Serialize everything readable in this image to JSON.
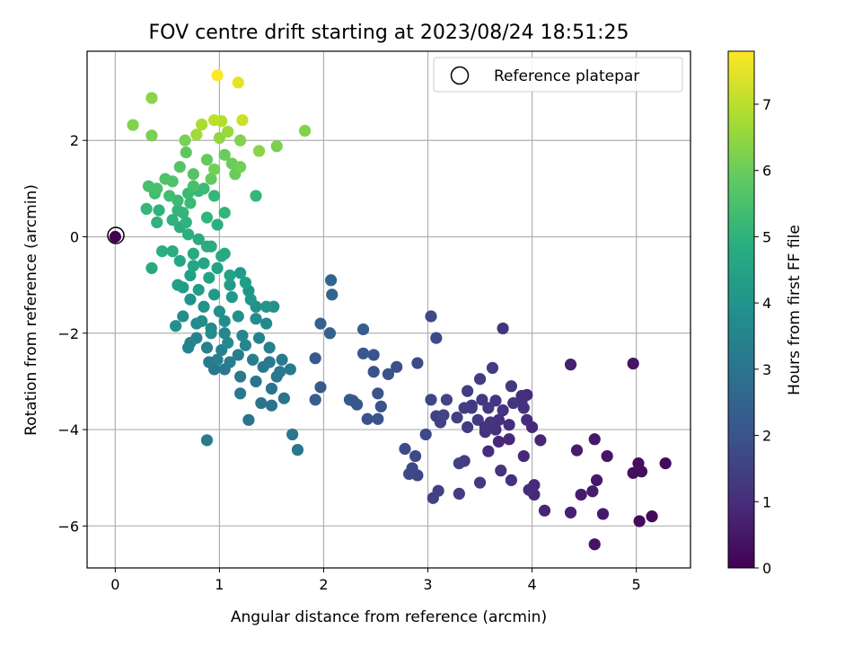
{
  "chart_data": {
    "type": "scatter",
    "title": "FOV centre drift starting at 2023/08/24 18:51:25",
    "xlabel": "Angular distance from reference (arcmin)",
    "ylabel": "Rotation from reference (arcmin)",
    "colorbar_label": "Hours from first FF file",
    "colormap": "viridis",
    "xlim": [
      -0.27,
      5.52
    ],
    "ylim": [
      -6.87,
      3.85
    ],
    "clim": [
      0,
      7.8
    ],
    "x_ticks": [
      "0",
      "1",
      "2",
      "3",
      "4",
      "5"
    ],
    "y_ticks": [
      "2",
      "0",
      "−2",
      "−4",
      "−6"
    ],
    "colorbar_ticks": [
      "0",
      "1",
      "2",
      "3",
      "4",
      "5",
      "6",
      "7"
    ],
    "grid": true,
    "legend": {
      "position": "top-right",
      "label": "Reference platepar"
    },
    "reference_point": {
      "x": 0,
      "y": 0
    },
    "points": [
      [
        0.98,
        3.35,
        7.8
      ],
      [
        1.18,
        3.2,
        7.5
      ],
      [
        1.22,
        2.42,
        7.2
      ],
      [
        0.95,
        2.42,
        7.0
      ],
      [
        1.02,
        2.4,
        6.9
      ],
      [
        0.83,
        2.33,
        6.8
      ],
      [
        0.78,
        2.12,
        6.7
      ],
      [
        1.08,
        2.18,
        6.6
      ],
      [
        1.0,
        2.05,
        6.5
      ],
      [
        1.38,
        1.78,
        6.4
      ],
      [
        1.82,
        2.2,
        6.3
      ],
      [
        1.55,
        1.88,
        6.2
      ],
      [
        1.2,
        1.45,
        6.1
      ],
      [
        1.15,
        1.3,
        6.0
      ],
      [
        0.95,
        1.4,
        6.1
      ],
      [
        0.92,
        1.2,
        5.9
      ],
      [
        0.88,
        1.6,
        5.9
      ],
      [
        1.05,
        1.7,
        6.0
      ],
      [
        0.68,
        1.75,
        5.8
      ],
      [
        0.62,
        1.45,
        5.7
      ],
      [
        0.75,
        1.3,
        5.7
      ],
      [
        0.55,
        1.15,
        5.6
      ],
      [
        0.48,
        1.2,
        5.6
      ],
      [
        0.4,
        1.0,
        5.5
      ],
      [
        0.32,
        1.05,
        5.5
      ],
      [
        0.38,
        0.9,
        5.4
      ],
      [
        0.52,
        0.85,
        5.4
      ],
      [
        0.6,
        0.75,
        5.3
      ],
      [
        0.72,
        0.7,
        5.3
      ],
      [
        0.85,
        1.0,
        5.3
      ],
      [
        0.95,
        0.85,
        5.2
      ],
      [
        1.05,
        0.5,
        5.1
      ],
      [
        0.88,
        0.4,
        5.1
      ],
      [
        0.65,
        0.5,
        5.1
      ],
      [
        0.55,
        0.35,
        5.0
      ],
      [
        0.42,
        0.55,
        5.0
      ],
      [
        0.4,
        0.3,
        5.0
      ],
      [
        0.62,
        0.2,
        4.9
      ],
      [
        0.7,
        0.05,
        4.9
      ],
      [
        0.8,
        -0.05,
        4.8
      ],
      [
        0.92,
        -0.2,
        4.8
      ],
      [
        1.05,
        -0.35,
        4.7
      ],
      [
        0.75,
        -0.35,
        4.7
      ],
      [
        0.62,
        -0.5,
        4.6
      ],
      [
        0.85,
        -0.55,
        4.6
      ],
      [
        0.98,
        -0.65,
        4.5
      ],
      [
        1.1,
        -0.8,
        4.5
      ],
      [
        1.25,
        -0.95,
        4.4
      ],
      [
        0.72,
        -0.8,
        4.4
      ],
      [
        0.65,
        -1.05,
        4.3
      ],
      [
        0.8,
        -1.1,
        4.3
      ],
      [
        0.95,
        -1.2,
        4.2
      ],
      [
        1.12,
        -1.25,
        4.2
      ],
      [
        1.3,
        -1.3,
        4.1
      ],
      [
        1.45,
        -1.45,
        4.1
      ],
      [
        0.72,
        -1.3,
        4.0
      ],
      [
        0.85,
        -1.45,
        4.0
      ],
      [
        1.0,
        -1.55,
        3.9
      ],
      [
        1.18,
        -1.65,
        3.9
      ],
      [
        1.35,
        -1.7,
        3.8
      ],
      [
        0.65,
        -1.65,
        3.8
      ],
      [
        0.78,
        -1.8,
        3.7
      ],
      [
        0.92,
        -1.9,
        3.7
      ],
      [
        1.05,
        -2.0,
        3.6
      ],
      [
        1.22,
        -2.05,
        3.6
      ],
      [
        1.38,
        -2.1,
        3.5
      ],
      [
        0.72,
        -2.2,
        3.5
      ],
      [
        0.88,
        -2.3,
        3.4
      ],
      [
        1.02,
        -2.35,
        3.4
      ],
      [
        1.18,
        -2.45,
        3.3
      ],
      [
        1.32,
        -2.55,
        3.3
      ],
      [
        1.48,
        -2.6,
        3.2
      ],
      [
        0.9,
        -2.6,
        3.2
      ],
      [
        1.05,
        -2.75,
        3.1
      ],
      [
        1.2,
        -2.9,
        3.1
      ],
      [
        1.35,
        -3.0,
        3.0
      ],
      [
        1.5,
        -3.15,
        3.0
      ],
      [
        0.95,
        -2.75,
        3.1
      ],
      [
        1.6,
        -2.55,
        3.2
      ],
      [
        1.62,
        -3.35,
        3.0
      ],
      [
        1.35,
        -1.45,
        3.9
      ],
      [
        1.52,
        -1.45,
        3.9
      ],
      [
        0.55,
        -0.3,
        4.8
      ],
      [
        0.35,
        -0.65,
        4.7
      ],
      [
        1.28,
        -3.8,
        3.0
      ],
      [
        1.2,
        -3.25,
        3.1
      ],
      [
        0.88,
        -4.22,
        3.2
      ],
      [
        1.7,
        -4.1,
        3.1
      ],
      [
        1.75,
        -4.42,
        3.1
      ],
      [
        1.68,
        -2.75,
        3.2
      ],
      [
        1.28,
        -1.12,
        4.0
      ],
      [
        1.2,
        -0.75,
        4.3
      ],
      [
        0.58,
        -1.85,
        3.9
      ],
      [
        0.92,
        -2.0,
        3.8
      ],
      [
        1.08,
        -2.2,
        3.7
      ],
      [
        1.25,
        -2.25,
        3.6
      ],
      [
        0.98,
        -2.55,
        3.4
      ],
      [
        1.1,
        -2.6,
        3.3
      ],
      [
        1.42,
        -2.7,
        3.2
      ],
      [
        1.5,
        -3.5,
        2.9
      ],
      [
        1.4,
        -3.45,
        3.0
      ],
      [
        1.55,
        -2.9,
        3.1
      ],
      [
        0.7,
        0.9,
        5.3
      ],
      [
        0.8,
        0.95,
        5.2
      ],
      [
        1.35,
        0.85,
        5.2
      ],
      [
        0.3,
        0.58,
        5.2
      ],
      [
        0.35,
        2.1,
        6.2
      ],
      [
        0.17,
        2.32,
        6.3
      ],
      [
        0.35,
        2.88,
        6.4
      ],
      [
        0.67,
        2.0,
        6.2
      ],
      [
        0.88,
        -0.2,
        4.8
      ],
      [
        0.98,
        0.25,
        4.9
      ],
      [
        0.6,
        0.55,
        5.1
      ],
      [
        0.45,
        -0.3,
        4.9
      ],
      [
        0.75,
        -0.6,
        4.6
      ],
      [
        0.9,
        -0.85,
        4.5
      ],
      [
        0.6,
        -1.0,
        4.4
      ],
      [
        1.02,
        -0.4,
        4.7
      ],
      [
        1.1,
        -1.0,
        4.3
      ],
      [
        1.45,
        -1.8,
        3.7
      ],
      [
        0.83,
        -1.75,
        3.8
      ],
      [
        1.48,
        -2.3,
        3.4
      ],
      [
        1.58,
        -2.8,
        3.2
      ],
      [
        0.78,
        -2.1,
        3.5
      ],
      [
        0.7,
        -2.3,
        3.5
      ],
      [
        1.05,
        -1.75,
        3.8
      ],
      [
        0.68,
        0.3,
        5.0
      ],
      [
        0.75,
        1.05,
        5.5
      ],
      [
        1.12,
        1.52,
        6.0
      ],
      [
        1.2,
        2.0,
        6.3
      ],
      [
        2.07,
        -0.9,
        2.5
      ],
      [
        2.08,
        -1.2,
        2.5
      ],
      [
        1.97,
        -1.8,
        2.4
      ],
      [
        2.06,
        -2.0,
        2.4
      ],
      [
        2.38,
        -1.92,
        2.3
      ],
      [
        1.92,
        -2.52,
        2.2
      ],
      [
        1.97,
        -3.12,
        2.2
      ],
      [
        1.92,
        -3.38,
        2.3
      ],
      [
        2.25,
        -3.38,
        2.2
      ],
      [
        2.32,
        -3.48,
        2.1
      ],
      [
        2.42,
        -3.78,
        2.0
      ],
      [
        2.52,
        -3.78,
        2.0
      ],
      [
        2.55,
        -3.52,
        2.0
      ],
      [
        2.52,
        -3.25,
        2.0
      ],
      [
        2.48,
        -2.8,
        2.0
      ],
      [
        2.48,
        -2.45,
        2.0
      ],
      [
        2.7,
        -2.7,
        1.9
      ],
      [
        2.9,
        -2.62,
        1.8
      ],
      [
        3.03,
        -1.65,
        1.7
      ],
      [
        3.08,
        -2.1,
        1.7
      ],
      [
        3.03,
        -3.38,
        1.6
      ],
      [
        3.18,
        -3.38,
        1.6
      ],
      [
        3.08,
        -3.72,
        1.5
      ],
      [
        3.12,
        -3.85,
        1.5
      ],
      [
        3.28,
        -3.75,
        1.5
      ],
      [
        3.35,
        -3.55,
        1.4
      ],
      [
        3.38,
        -3.2,
        1.4
      ],
      [
        3.52,
        -3.38,
        1.3
      ],
      [
        3.58,
        -3.55,
        1.3
      ],
      [
        3.65,
        -3.4,
        1.2
      ],
      [
        3.72,
        -3.6,
        1.2
      ],
      [
        3.82,
        -3.45,
        1.2
      ],
      [
        3.9,
        -3.3,
        1.1
      ],
      [
        3.92,
        -3.55,
        1.1
      ],
      [
        3.95,
        -3.8,
        1.0
      ],
      [
        3.68,
        -3.8,
        1.1
      ],
      [
        3.65,
        -4.0,
        1.1
      ],
      [
        3.78,
        -3.9,
        1.0
      ],
      [
        3.55,
        -4.05,
        1.1
      ],
      [
        3.42,
        -3.5,
        1.3
      ],
      [
        3.38,
        -3.95,
        1.4
      ],
      [
        3.5,
        -2.95,
        1.4
      ],
      [
        3.62,
        -2.72,
        1.4
      ],
      [
        3.8,
        -3.1,
        1.3
      ],
      [
        3.72,
        -1.9,
        1.2
      ],
      [
        3.9,
        -3.42,
        1.1
      ],
      [
        3.95,
        -3.28,
        1.0
      ],
      [
        3.58,
        -4.45,
        1.0
      ],
      [
        3.68,
        -4.25,
        0.9
      ],
      [
        3.78,
        -4.2,
        0.9
      ],
      [
        3.92,
        -4.55,
        0.9
      ],
      [
        4.08,
        -4.22,
        0.8
      ],
      [
        4.0,
        -3.95,
        0.9
      ],
      [
        2.78,
        -4.4,
        1.8
      ],
      [
        2.88,
        -4.55,
        1.7
      ],
      [
        2.98,
        -4.1,
        1.7
      ],
      [
        2.85,
        -4.8,
        1.7
      ],
      [
        2.82,
        -4.92,
        1.7
      ],
      [
        2.9,
        -4.95,
        1.6
      ],
      [
        3.05,
        -5.42,
        1.5
      ],
      [
        3.1,
        -5.27,
        1.5
      ],
      [
        3.3,
        -4.7,
        1.5
      ],
      [
        3.35,
        -4.65,
        1.4
      ],
      [
        3.3,
        -5.33,
        1.4
      ],
      [
        3.5,
        -5.1,
        1.3
      ],
      [
        3.7,
        -4.85,
        1.2
      ],
      [
        3.8,
        -5.05,
        1.1
      ],
      [
        3.97,
        -5.25,
        1.0
      ],
      [
        4.02,
        -5.15,
        0.9
      ],
      [
        4.02,
        -5.35,
        0.9
      ],
      [
        4.12,
        -5.68,
        0.8
      ],
      [
        4.37,
        -2.65,
        0.7
      ],
      [
        4.37,
        -5.72,
        0.7
      ],
      [
        4.43,
        -4.43,
        0.6
      ],
      [
        4.47,
        -5.35,
        0.6
      ],
      [
        4.58,
        -5.28,
        0.6
      ],
      [
        4.6,
        -4.2,
        0.5
      ],
      [
        4.62,
        -5.05,
        0.5
      ],
      [
        4.68,
        -5.75,
        0.5
      ],
      [
        4.72,
        -4.55,
        0.4
      ],
      [
        4.6,
        -6.38,
        0.4
      ],
      [
        4.97,
        -2.63,
        0.4
      ],
      [
        4.97,
        -4.9,
        0.3
      ],
      [
        5.02,
        -4.7,
        0.3
      ],
      [
        5.05,
        -4.87,
        0.3
      ],
      [
        5.03,
        -5.9,
        0.2
      ],
      [
        5.15,
        -5.8,
        0.2
      ],
      [
        5.28,
        -4.7,
        0.2
      ],
      [
        3.48,
        -3.8,
        1.3
      ],
      [
        3.6,
        -3.85,
        1.2
      ],
      [
        3.55,
        -3.95,
        1.2
      ],
      [
        2.62,
        -2.85,
        2.0
      ],
      [
        2.38,
        -2.42,
        2.1
      ],
      [
        2.28,
        -3.4,
        2.1
      ],
      [
        3.15,
        -3.7,
        1.6
      ],
      [
        3.42,
        -3.55,
        1.3
      ]
    ]
  }
}
